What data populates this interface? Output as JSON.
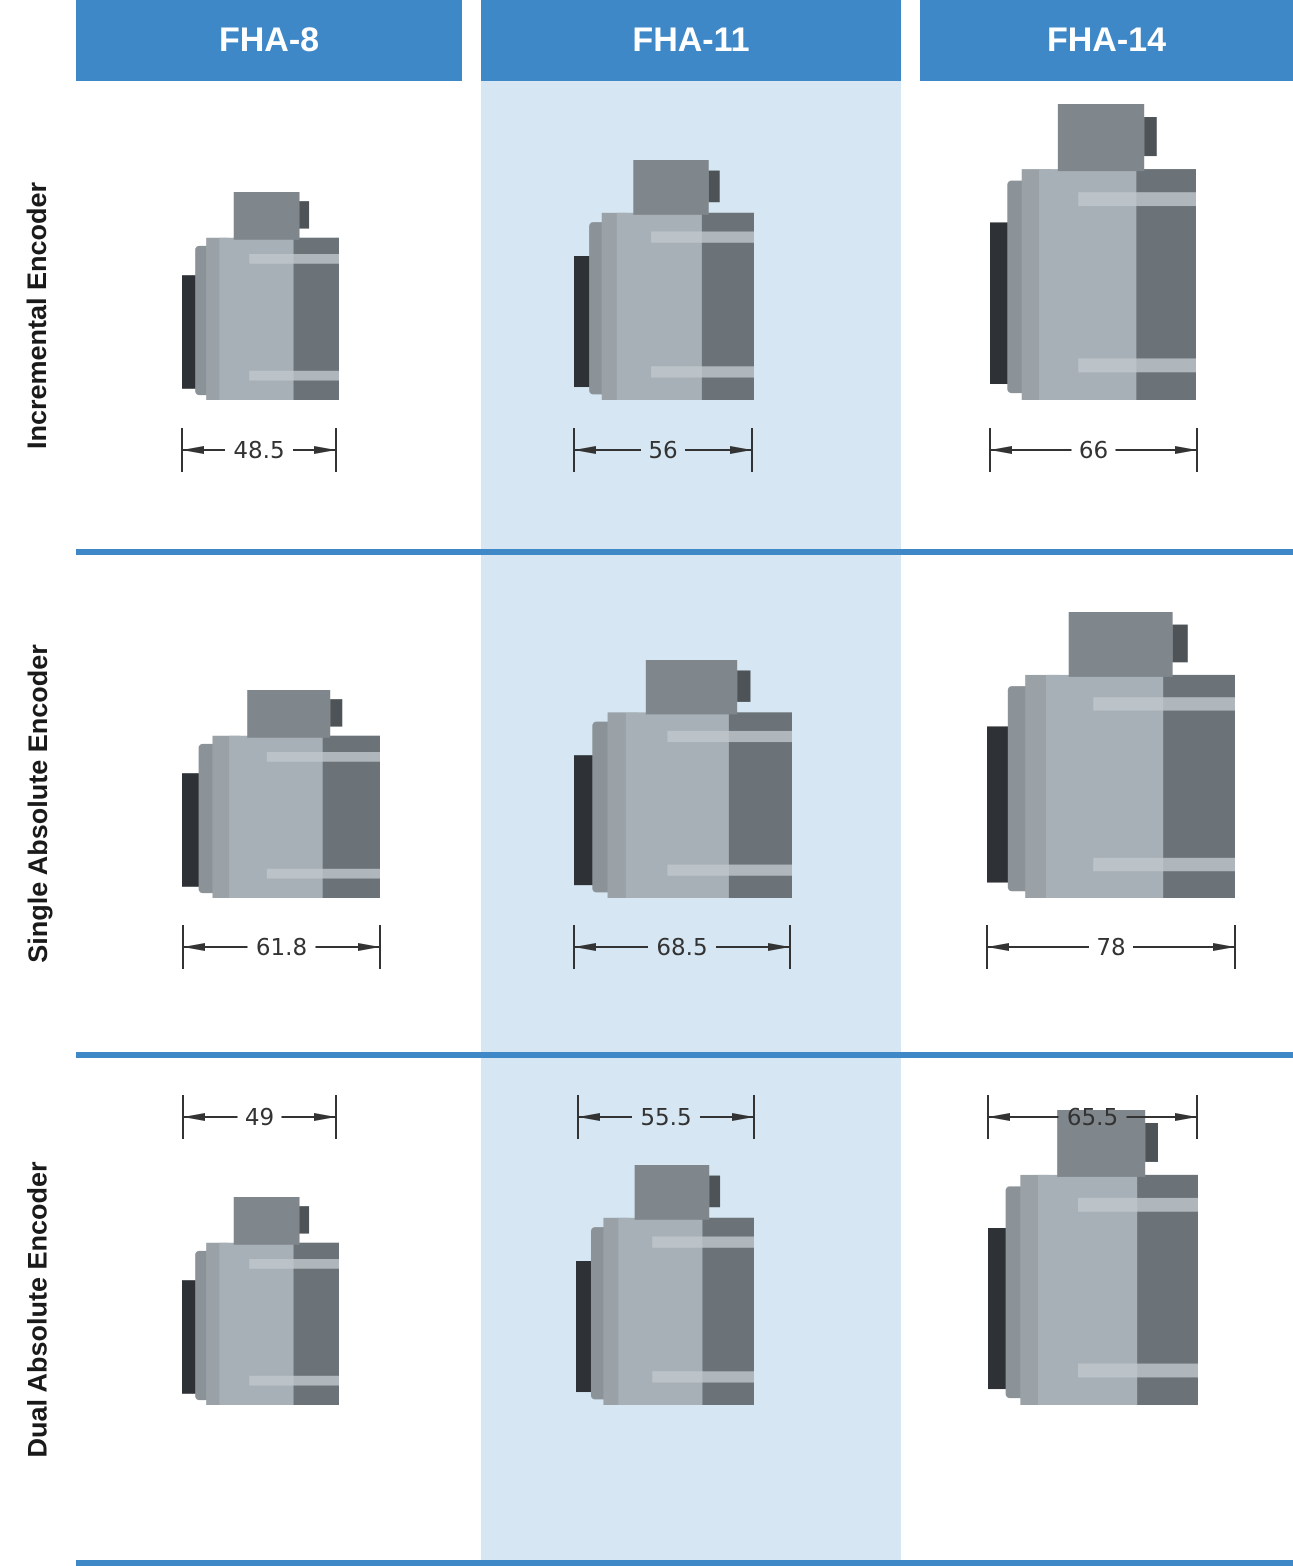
{
  "colors": {
    "header_blue": "#3f88c8",
    "column_highlight": "#d6e7f3",
    "divider_blue": "#3f88c8",
    "actuator_body": "#a7b0b7",
    "actuator_dark": "#6b7378",
    "actuator_connector": "#80878c",
    "dimension_ink": "#333333"
  },
  "columns": [
    {
      "label": "FHA-8"
    },
    {
      "label": "FHA-11"
    },
    {
      "label": "FHA-14"
    }
  ],
  "rows": [
    {
      "label": "Incremental Encoder",
      "dimensions": [
        "48.5",
        "56",
        "66"
      ]
    },
    {
      "label": "Single Absolute Encoder",
      "dimensions": [
        "61.8",
        "68.5",
        "78"
      ]
    },
    {
      "label": "Dual Absolute Encoder",
      "dimensions": [
        "49",
        "55.5",
        "65.5"
      ]
    }
  ],
  "icons": {
    "actuator": "actuator-icon",
    "dimension_arrow": "dimension-arrow-icon"
  }
}
